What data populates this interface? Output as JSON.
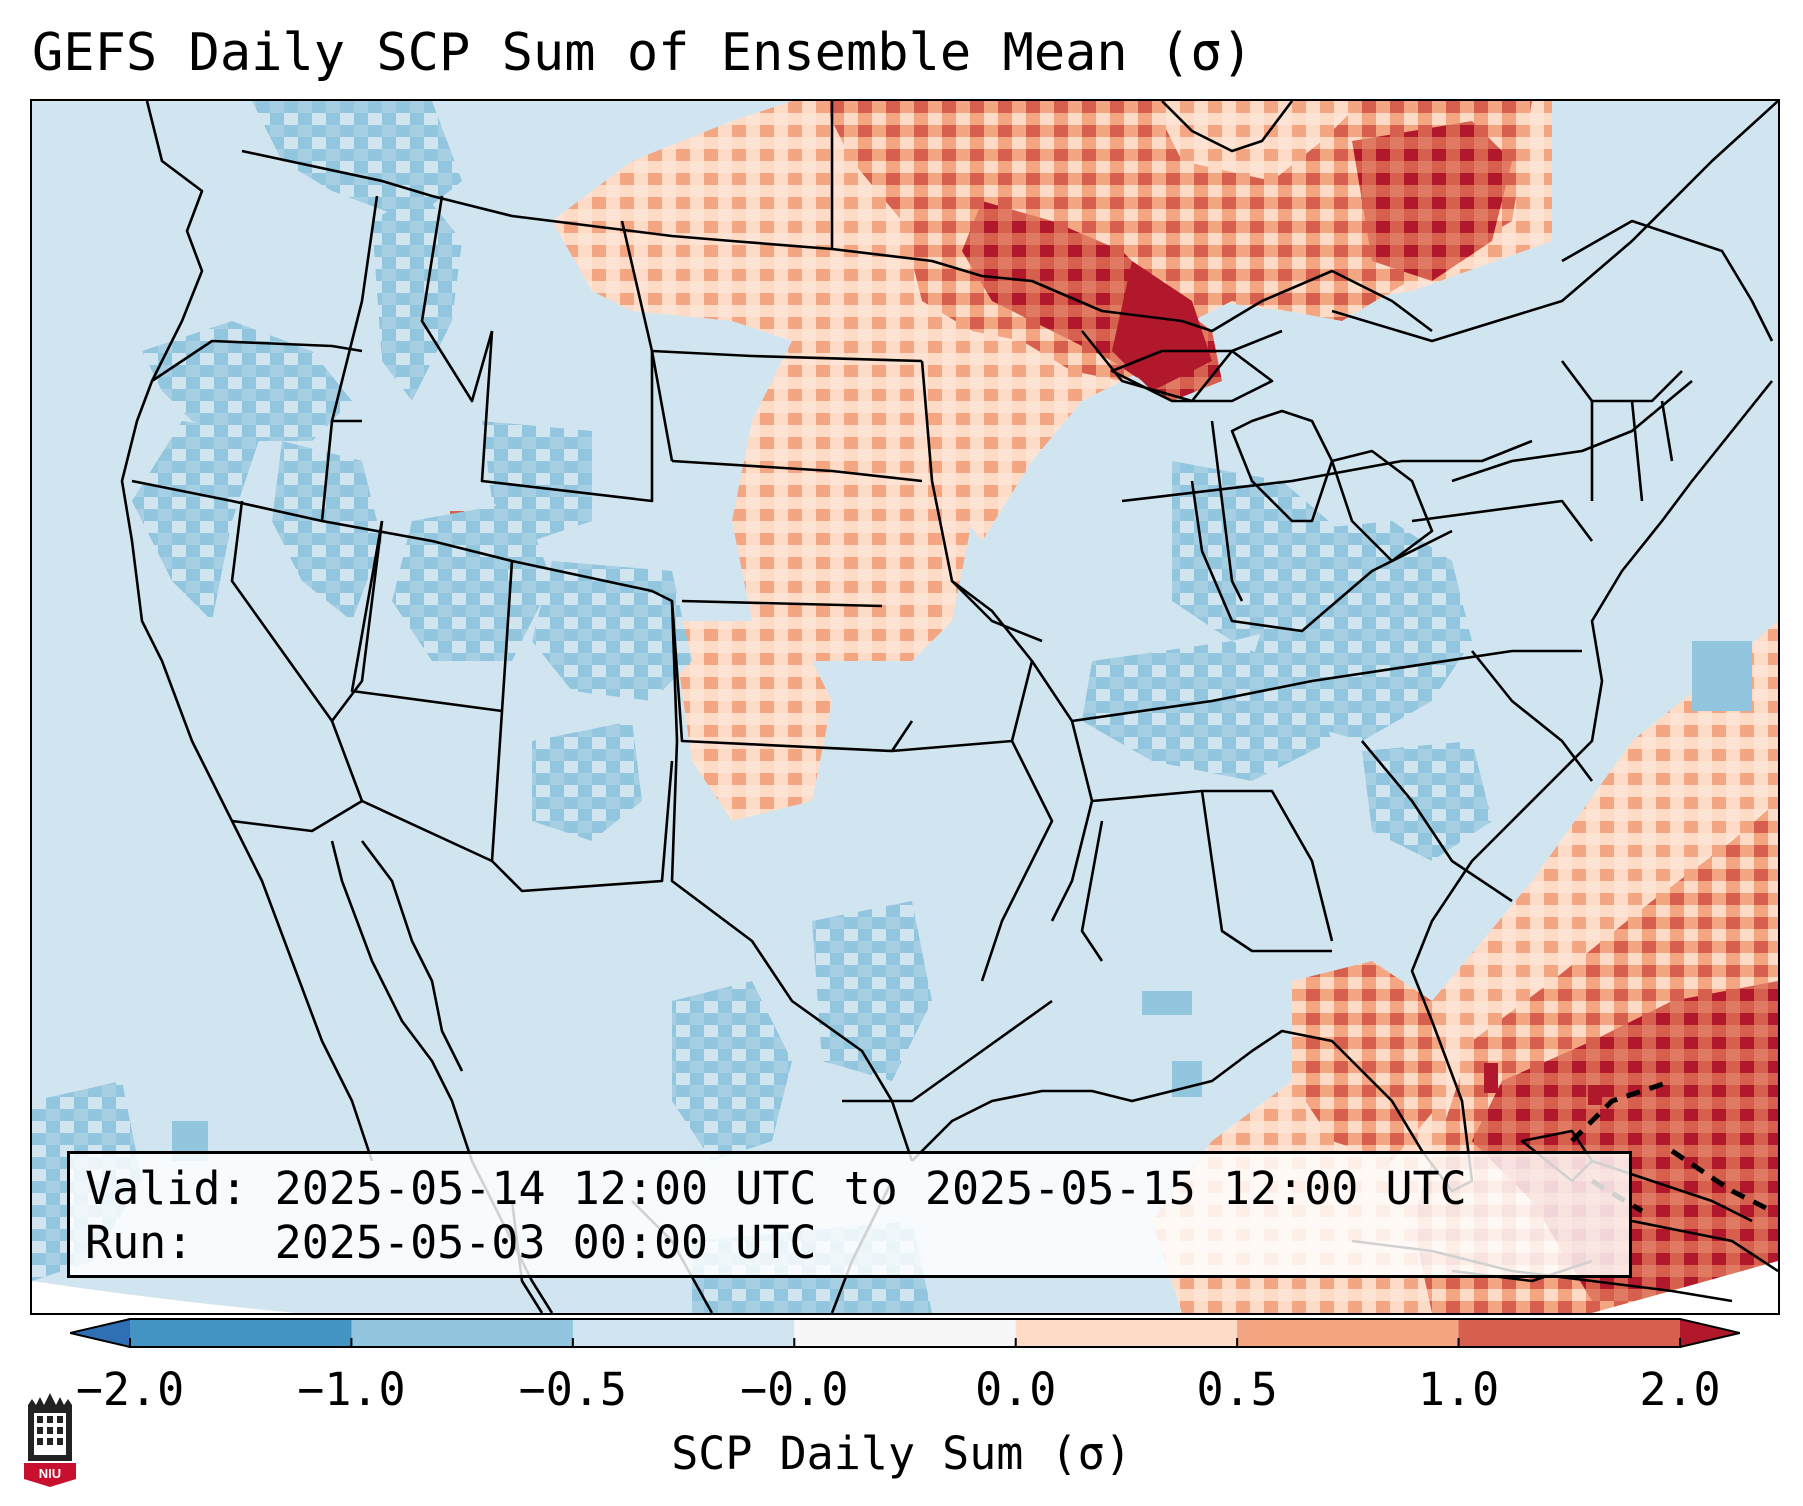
{
  "title": "GEFS Daily SCP Sum of Ensemble Mean (σ)",
  "infobox": {
    "valid_label": "Valid:",
    "valid_value": "2025-05-14 12:00 UTC to 2025-05-15 12:00 UTC",
    "run_label": "Run:",
    "run_value": "2025-05-03 00:00 UTC"
  },
  "colorbar": {
    "label": "SCP Daily Sum (σ)",
    "ticks": [
      "−2.0",
      "−1.0",
      "−0.5",
      "−0.0",
      "0.0",
      "0.5",
      "1.0",
      "2.0"
    ],
    "bins": [
      {
        "range": "< -2.0",
        "color": "#2e6fb5"
      },
      {
        "range": "-2.0 to -1.0",
        "color": "#4393c3"
      },
      {
        "range": "-1.0 to -0.5",
        "color": "#92c5de"
      },
      {
        "range": "-0.5 to -0.0",
        "color": "#d1e5f0"
      },
      {
        "range": "-0.0 to 0.0",
        "color": "#f7f7f7"
      },
      {
        "range": "0.0 to 0.5",
        "color": "#fddbc7"
      },
      {
        "range": "0.5 to 1.0",
        "color": "#f4a582"
      },
      {
        "range": "1.0 to 2.0",
        "color": "#d6604d"
      },
      {
        "range": "> 2.0",
        "color": "#b2182b"
      }
    ],
    "extend": "both"
  },
  "map": {
    "projection": "Lambert conformal, CONUS",
    "background_color": "#d1e5f0",
    "features": [
      "state-borders",
      "coastlines",
      "country-borders"
    ],
    "anomaly_regions": [
      {
        "area": "Upper Midwest / Great Lakes / Ontario",
        "level": "1.0 to 2.0"
      },
      {
        "area": "Northern Plains / Dakotas",
        "level": "0.0 to 0.5"
      },
      {
        "area": "Southern Plains / Kansas / Oklahoma",
        "level": "0.0 to 0.5"
      },
      {
        "area": "Florida / Bahamas / Gulf Stream",
        "level": "0.5 to 2.0"
      },
      {
        "area": "Ohio Valley / Appalachians",
        "level": "-1.0 to -0.5"
      },
      {
        "area": "Pacific Northwest / Great Basin / Rockies",
        "level": "-1.0 to -0.5"
      }
    ]
  },
  "logo": {
    "name": "NIU logo",
    "text": "NIU",
    "colors": {
      "tower": "#222222",
      "banner": "#c8102e"
    }
  }
}
